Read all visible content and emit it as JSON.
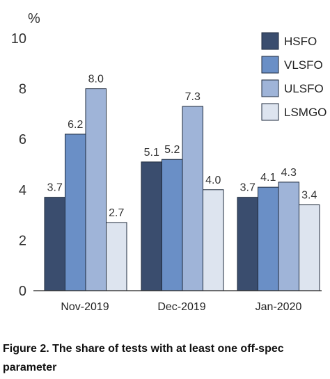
{
  "caption": "Figure 2. The share of tests with at least one off-spec parameter",
  "chart_data": {
    "type": "bar",
    "title": "",
    "xlabel": "",
    "ylabel": "%",
    "ylim": [
      0,
      10
    ],
    "yticks": [
      0,
      2,
      4,
      6,
      8,
      10
    ],
    "grid": false,
    "legend_position": "top-right",
    "categories": [
      "Nov-2019",
      "Dec-2019",
      "Jan-2020"
    ],
    "series": [
      {
        "name": "HSFO",
        "color": "#3a4d6e",
        "values": [
          3.7,
          5.1,
          3.7
        ]
      },
      {
        "name": "VLSFO",
        "color": "#6a8fc6",
        "values": [
          6.2,
          5.2,
          4.1
        ]
      },
      {
        "name": "ULSFO",
        "color": "#9fb4d8",
        "values": [
          8.0,
          7.3,
          4.3
        ]
      },
      {
        "name": "LSMGO",
        "color": "#dde4ef",
        "values": [
          2.7,
          4.0,
          3.4
        ]
      }
    ],
    "value_labels": [
      [
        "3.7",
        "6.2",
        "8.0",
        "2.7"
      ],
      [
        "5.1",
        "5.2",
        "7.3",
        "4.0"
      ],
      [
        "3.7",
        "4.1",
        "4.3",
        "3.4"
      ]
    ]
  }
}
